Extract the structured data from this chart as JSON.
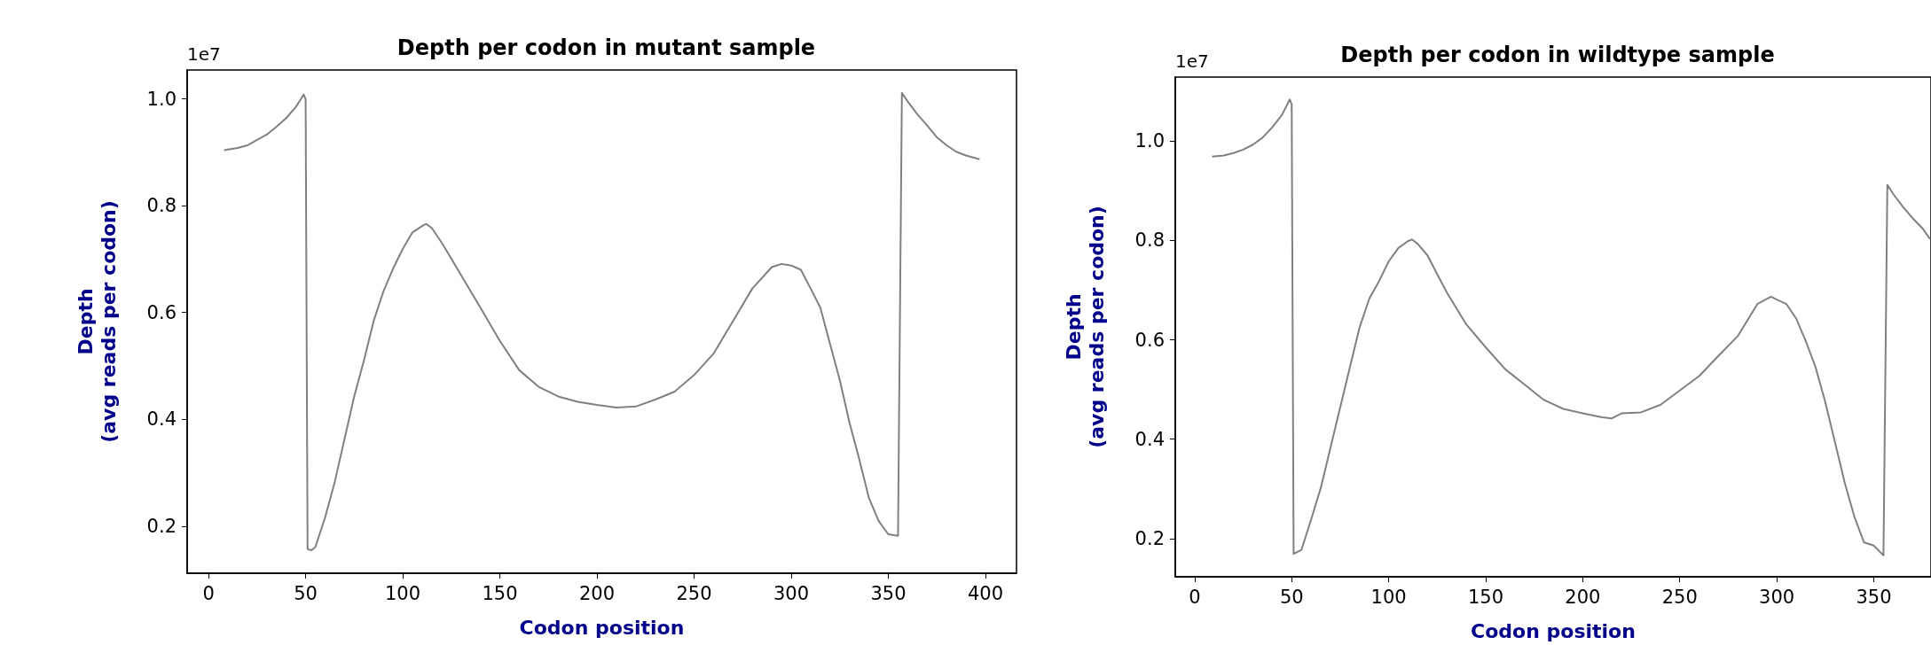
{
  "chart_data": [
    {
      "type": "line",
      "title": "Depth per codon in mutant sample",
      "xlabel": "Codon position",
      "ylabel": "Depth\n(avg reads per codon)",
      "annotations": [
        "1e7"
      ],
      "color": "#808080",
      "x": [
        8,
        15,
        20,
        25,
        30,
        35,
        40,
        45,
        49,
        50,
        51,
        53,
        55,
        60,
        65,
        70,
        75,
        80,
        85,
        90,
        95,
        100,
        105,
        110,
        112,
        115,
        120,
        125,
        130,
        140,
        150,
        160,
        170,
        180,
        190,
        200,
        210,
        220,
        230,
        240,
        250,
        260,
        270,
        280,
        290,
        295,
        300,
        305,
        310,
        315,
        320,
        325,
        330,
        335,
        340,
        345,
        350,
        355,
        357,
        360,
        365,
        370,
        375,
        380,
        385,
        390,
        397
      ],
      "values": [
        0.904,
        0.908,
        0.913,
        0.923,
        0.933,
        0.948,
        0.964,
        0.985,
        1.008,
        0.999,
        0.157,
        0.155,
        0.161,
        0.216,
        0.283,
        0.363,
        0.443,
        0.51,
        0.584,
        0.639,
        0.682,
        0.719,
        0.75,
        0.762,
        0.766,
        0.758,
        0.731,
        0.701,
        0.67,
        0.609,
        0.547,
        0.492,
        0.461,
        0.443,
        0.433,
        0.427,
        0.422,
        0.424,
        0.437,
        0.452,
        0.483,
        0.523,
        0.584,
        0.645,
        0.685,
        0.691,
        0.688,
        0.68,
        0.645,
        0.609,
        0.541,
        0.474,
        0.394,
        0.326,
        0.253,
        0.21,
        0.185,
        0.182,
        1.011,
        0.995,
        0.971,
        0.95,
        0.928,
        0.913,
        0.901,
        0.894,
        0.887
      ],
      "xlim": [
        -11,
        416
      ],
      "ylim": [
        0.112,
        1.054
      ],
      "xticks": [
        0,
        50,
        100,
        150,
        200,
        250,
        300,
        350,
        400
      ],
      "yticks": [
        0.2,
        0.4,
        0.6,
        0.8,
        {
          "value": 1,
          "label": "1.0"
        }
      ]
    },
    {
      "type": "line",
      "title": "Depth per codon in wildtype sample",
      "xlabel": "Codon position",
      "ylabel": "Depth\n(avg reads per codon)",
      "annotations": [
        "1e7"
      ],
      "color": "#808080",
      "x": [
        9,
        15,
        20,
        25,
        30,
        35,
        40,
        45,
        49,
        50,
        51,
        55,
        60,
        65,
        70,
        75,
        80,
        85,
        90,
        95,
        100,
        105,
        110,
        112,
        115,
        120,
        125,
        130,
        140,
        150,
        160,
        170,
        180,
        190,
        200,
        210,
        215,
        220,
        230,
        240,
        250,
        260,
        270,
        280,
        290,
        297,
        300,
        305,
        310,
        315,
        320,
        325,
        330,
        335,
        340,
        345,
        350,
        355,
        357,
        360,
        365,
        370,
        375,
        379
      ],
      "values": [
        0.969,
        0.971,
        0.976,
        0.983,
        0.993,
        1.007,
        1.028,
        1.053,
        1.084,
        1.074,
        0.169,
        0.177,
        0.238,
        0.302,
        0.383,
        0.464,
        0.545,
        0.625,
        0.683,
        0.718,
        0.758,
        0.785,
        0.799,
        0.802,
        0.793,
        0.77,
        0.732,
        0.695,
        0.631,
        0.585,
        0.541,
        0.51,
        0.479,
        0.461,
        0.452,
        0.444,
        0.442,
        0.452,
        0.454,
        0.469,
        0.498,
        0.527,
        0.568,
        0.608,
        0.672,
        0.687,
        0.681,
        0.672,
        0.643,
        0.597,
        0.545,
        0.475,
        0.394,
        0.313,
        0.244,
        0.192,
        0.186,
        0.166,
        0.912,
        0.894,
        0.868,
        0.845,
        0.825,
        0.803
      ],
      "xlim": [
        -10,
        379.5
      ],
      "ylim": [
        0.123,
        1.129
      ],
      "xticks": [
        0,
        50,
        100,
        150,
        200,
        250,
        300,
        350
      ],
      "yticks": [
        0.2,
        0.4,
        0.6,
        0.8,
        {
          "value": 1,
          "label": "1.0"
        }
      ]
    }
  ]
}
